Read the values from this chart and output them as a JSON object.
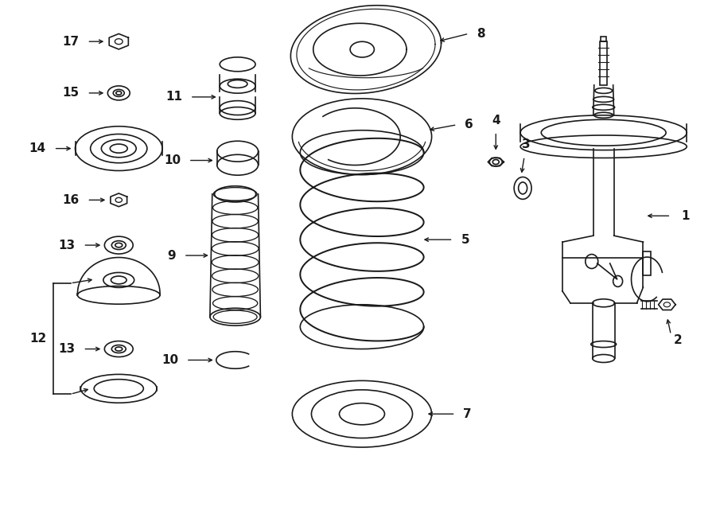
{
  "bg_color": "#ffffff",
  "line_color": "#1a1a1a",
  "line_width": 1.2,
  "fig_width": 9.0,
  "fig_height": 6.61,
  "dpi": 100,
  "label_fontsize": 11,
  "label_fontweight": "bold"
}
